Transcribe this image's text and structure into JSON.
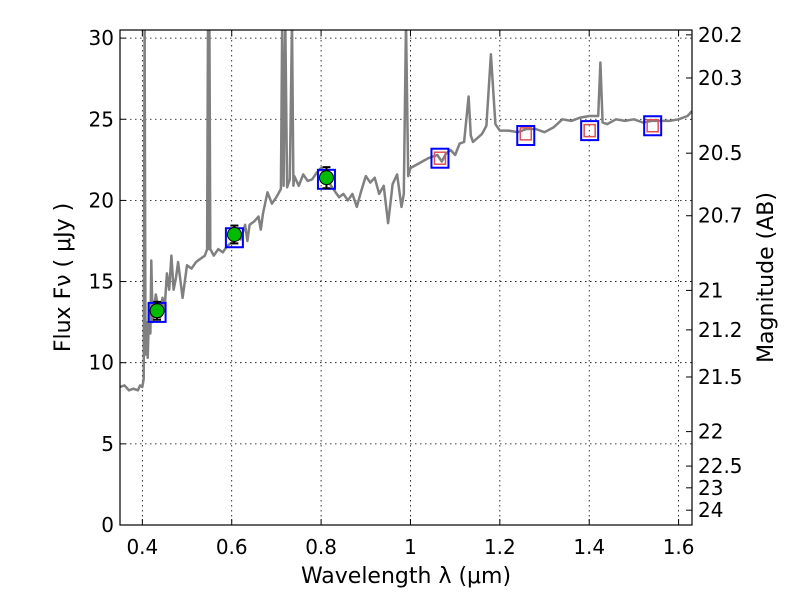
{
  "chart_data": {
    "type": "line",
    "title": "",
    "xlabel": "Wavelength  λ (μm)",
    "ylabel": "Flux  Fν  ( μJy )",
    "y2label": "Magnitude (AB)",
    "xlim": [
      0.35,
      1.63
    ],
    "ylim": [
      0,
      30.5
    ],
    "grid": true,
    "x_ticks": [
      {
        "value": 0.4,
        "label": "0.4"
      },
      {
        "value": 0.6,
        "label": "0.6"
      },
      {
        "value": 0.8,
        "label": "0.8"
      },
      {
        "value": 1.0,
        "label": "1"
      },
      {
        "value": 1.2,
        "label": "1.2"
      },
      {
        "value": 1.4,
        "label": "1.4"
      },
      {
        "value": 1.6,
        "label": "1.6"
      }
    ],
    "y_ticks": [
      {
        "value": 0,
        "label": "0"
      },
      {
        "value": 5,
        "label": "5"
      },
      {
        "value": 10,
        "label": "10"
      },
      {
        "value": 15,
        "label": "15"
      },
      {
        "value": 20,
        "label": "20"
      },
      {
        "value": 25,
        "label": "25"
      },
      {
        "value": 30,
        "label": "30"
      }
    ],
    "mag_ticks": [
      {
        "value": 20.2,
        "label": "20.2"
      },
      {
        "value": 20.3,
        "label": "20.3"
      },
      {
        "value": 20.5,
        "label": "20.5"
      },
      {
        "value": 20.7,
        "label": "20.7"
      },
      {
        "value": 21,
        "label": "21"
      },
      {
        "value": 21.2,
        "label": "21.2"
      },
      {
        "value": 21.5,
        "label": "21.5"
      },
      {
        "value": 22,
        "label": "22"
      },
      {
        "value": 22.5,
        "label": "22.5"
      },
      {
        "value": 23,
        "label": "23"
      },
      {
        "value": 24,
        "label": "24"
      }
    ],
    "series": [
      {
        "name": "model-spectrum",
        "kind": "line",
        "color": "#808080",
        "points": [
          [
            0.35,
            8.5
          ],
          [
            0.36,
            8.6
          ],
          [
            0.37,
            8.3
          ],
          [
            0.38,
            8.4
          ],
          [
            0.39,
            8.3
          ],
          [
            0.395,
            8.6
          ],
          [
            0.4,
            8.5
          ],
          [
            0.403,
            9.0
          ],
          [
            0.405,
            31
          ],
          [
            0.407,
            10.5
          ],
          [
            0.41,
            12.5
          ],
          [
            0.412,
            10.3
          ],
          [
            0.415,
            13.0
          ],
          [
            0.418,
            11.8
          ],
          [
            0.42,
            16.3
          ],
          [
            0.423,
            12.5
          ],
          [
            0.43,
            14.2
          ],
          [
            0.44,
            12.8
          ],
          [
            0.445,
            14.0
          ],
          [
            0.45,
            13.4
          ],
          [
            0.455,
            15.5
          ],
          [
            0.46,
            14.5
          ],
          [
            0.465,
            16.6
          ],
          [
            0.47,
            14.5
          ],
          [
            0.475,
            15.2
          ],
          [
            0.48,
            16.2
          ],
          [
            0.49,
            14.0
          ],
          [
            0.495,
            15.0
          ],
          [
            0.5,
            16.0
          ],
          [
            0.51,
            15.8
          ],
          [
            0.52,
            16.2
          ],
          [
            0.53,
            16.4
          ],
          [
            0.54,
            16.6
          ],
          [
            0.545,
            17.0
          ],
          [
            0.547,
            31
          ],
          [
            0.549,
            17.0
          ],
          [
            0.55,
            31
          ],
          [
            0.552,
            17.0
          ],
          [
            0.56,
            16.6
          ],
          [
            0.57,
            17.0
          ],
          [
            0.58,
            16.8
          ],
          [
            0.59,
            17.2
          ],
          [
            0.6,
            17.4
          ],
          [
            0.61,
            17.7
          ],
          [
            0.62,
            17.6
          ],
          [
            0.63,
            18.5
          ],
          [
            0.635,
            17.5
          ],
          [
            0.64,
            18.5
          ],
          [
            0.65,
            18.7
          ],
          [
            0.66,
            19.0
          ],
          [
            0.665,
            18.2
          ],
          [
            0.67,
            19.2
          ],
          [
            0.68,
            20.5
          ],
          [
            0.69,
            19.8
          ],
          [
            0.7,
            20.2
          ],
          [
            0.71,
            20.7
          ],
          [
            0.713,
            31
          ],
          [
            0.716,
            20.9
          ],
          [
            0.72,
            31
          ],
          [
            0.724,
            20.8
          ],
          [
            0.73,
            21.3
          ],
          [
            0.735,
            31
          ],
          [
            0.738,
            20.9
          ],
          [
            0.74,
            21.5
          ],
          [
            0.75,
            20.9
          ],
          [
            0.76,
            21.6
          ],
          [
            0.77,
            21.2
          ],
          [
            0.78,
            21.3
          ],
          [
            0.79,
            21.7
          ],
          [
            0.8,
            22.0
          ],
          [
            0.81,
            21.6
          ],
          [
            0.82,
            21.0
          ],
          [
            0.83,
            20.6
          ],
          [
            0.84,
            20.2
          ],
          [
            0.85,
            20.4
          ],
          [
            0.86,
            20.0
          ],
          [
            0.87,
            20.4
          ],
          [
            0.88,
            19.6
          ],
          [
            0.89,
            20.6
          ],
          [
            0.9,
            21.5
          ],
          [
            0.91,
            21.1
          ],
          [
            0.92,
            21.4
          ],
          [
            0.93,
            20.4
          ],
          [
            0.94,
            20.9
          ],
          [
            0.95,
            18.6
          ],
          [
            0.955,
            19.8
          ],
          [
            0.96,
            21.0
          ],
          [
            0.97,
            21.6
          ],
          [
            0.98,
            19.6
          ],
          [
            0.985,
            20.4
          ],
          [
            0.99,
            31
          ],
          [
            0.995,
            21.5
          ],
          [
            1.0,
            22.0
          ],
          [
            1.02,
            22.3
          ],
          [
            1.04,
            22.6
          ],
          [
            1.06,
            22.8
          ],
          [
            1.07,
            22.4
          ],
          [
            1.08,
            22.9
          ],
          [
            1.09,
            23.1
          ],
          [
            1.1,
            22.8
          ],
          [
            1.11,
            23.5
          ],
          [
            1.12,
            23.6
          ],
          [
            1.13,
            26.4
          ],
          [
            1.135,
            24.0
          ],
          [
            1.14,
            23.6
          ],
          [
            1.16,
            24.1
          ],
          [
            1.17,
            24.6
          ],
          [
            1.18,
            29.0
          ],
          [
            1.19,
            24.7
          ],
          [
            1.2,
            24.3
          ],
          [
            1.22,
            24.3
          ],
          [
            1.24,
            24.2
          ],
          [
            1.26,
            24.4
          ],
          [
            1.28,
            24.4
          ],
          [
            1.3,
            24.2
          ],
          [
            1.32,
            24.5
          ],
          [
            1.34,
            25.0
          ],
          [
            1.36,
            24.9
          ],
          [
            1.38,
            25.1
          ],
          [
            1.4,
            25.2
          ],
          [
            1.42,
            25.2
          ],
          [
            1.425,
            28.5
          ],
          [
            1.43,
            24.8
          ],
          [
            1.44,
            24.7
          ],
          [
            1.46,
            25.0
          ],
          [
            1.48,
            24.9
          ],
          [
            1.5,
            25.0
          ],
          [
            1.52,
            24.8
          ],
          [
            1.54,
            24.9
          ],
          [
            1.56,
            24.9
          ],
          [
            1.58,
            24.9
          ],
          [
            1.6,
            25.0
          ],
          [
            1.62,
            25.2
          ],
          [
            1.63,
            25.5
          ]
        ]
      },
      {
        "name": "model-synthetic-photometry",
        "kind": "open-square",
        "color": "#0000ff",
        "points": [
          [
            0.433,
            13.1
          ],
          [
            0.606,
            17.7
          ],
          [
            0.812,
            21.3
          ],
          [
            1.066,
            22.6
          ],
          [
            1.258,
            24.0
          ],
          [
            1.401,
            24.3
          ],
          [
            1.542,
            24.6
          ]
        ]
      },
      {
        "name": "observed-photometry",
        "kind": "filled-circle",
        "color": "#00bb00",
        "points": [
          {
            "x": 0.433,
            "y": 13.2,
            "err": 0.55
          },
          {
            "x": 0.606,
            "y": 17.9,
            "err": 0.55
          },
          {
            "x": 0.812,
            "y": 21.4,
            "err": 0.65
          }
        ]
      },
      {
        "name": "observed-upper-limits",
        "kind": "small-open-square",
        "color": "#e05050",
        "points": [
          [
            1.066,
            22.6
          ],
          [
            1.258,
            24.1
          ],
          [
            1.401,
            24.3
          ],
          [
            1.542,
            24.6
          ]
        ]
      }
    ]
  }
}
